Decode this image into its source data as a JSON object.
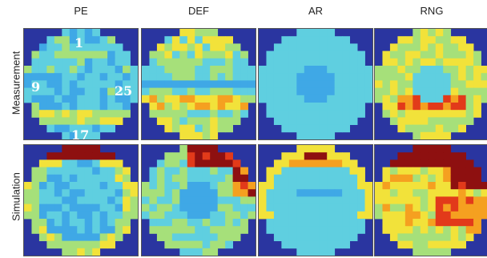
{
  "chart_data": {
    "type": "heatmap",
    "columns": [
      "PE",
      "DEF",
      "AR",
      "RNG"
    ],
    "rows": [
      "Measurement",
      "Simulation"
    ],
    "grid_size": 15,
    "wafer_map": true,
    "die_labels": [
      "1",
      "9",
      "25",
      "17"
    ],
    "colormap": [
      "#2b3aa5",
      "#3c6fd6",
      "#3fa8e6",
      "#5fcfe0",
      "#a6e07a",
      "#f2e23a",
      "#f5a020",
      "#e23a1a",
      "#8e1010"
    ],
    "panels": [
      {
        "row": "Measurement",
        "col": "PE",
        "pattern": "pe_meas"
      },
      {
        "row": "Measurement",
        "col": "DEF",
        "pattern": "def_meas"
      },
      {
        "row": "Measurement",
        "col": "AR",
        "pattern": "ar_meas"
      },
      {
        "row": "Measurement",
        "col": "RNG",
        "pattern": "rng_meas"
      },
      {
        "row": "Simulation",
        "col": "PE",
        "pattern": "pe_sim"
      },
      {
        "row": "Simulation",
        "col": "DEF",
        "pattern": "def_sim"
      },
      {
        "row": "Simulation",
        "col": "AR",
        "pattern": "ar_sim"
      },
      {
        "row": "Simulation",
        "col": "RNG",
        "pattern": "rng_sim"
      }
    ]
  }
}
